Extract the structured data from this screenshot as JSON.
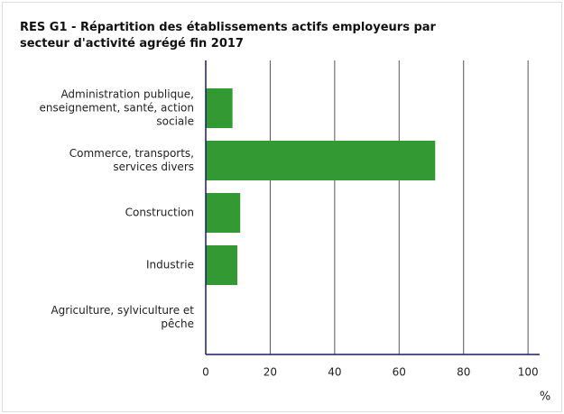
{
  "chart_data": {
    "type": "bar",
    "orientation": "horizontal",
    "title": "RES G1 - Répartition des établissements actifs employeurs par secteur d'activité agrégé fin 2017",
    "categories": [
      "Administration publique, enseignement, santé, action sociale",
      "Commerce, transports, services divers",
      "Construction",
      "Industrie",
      "Agriculture, sylviculture et pêche"
    ],
    "values": [
      8.3,
      71.2,
      10.7,
      9.8,
      0
    ],
    "color": "#339933",
    "xlabel": "%",
    "xlim": [
      0,
      103.6
    ],
    "xticks": [
      0,
      20,
      40,
      60,
      80,
      100
    ],
    "grid": true
  }
}
